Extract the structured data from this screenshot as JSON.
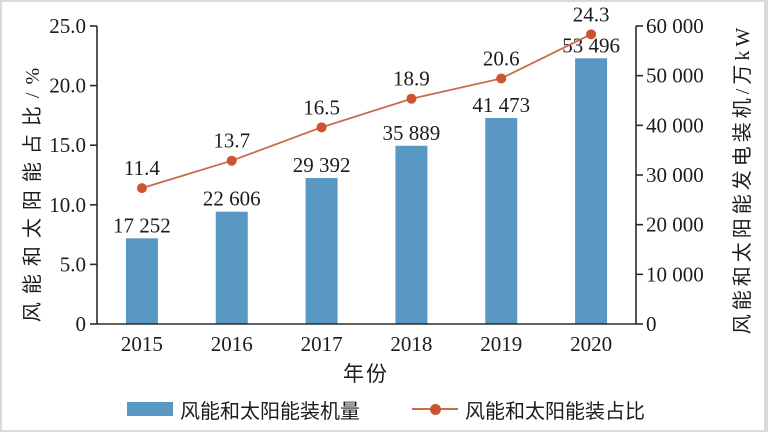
{
  "chart_data": {
    "type": "bar",
    "categories": [
      "2015",
      "2016",
      "2017",
      "2018",
      "2019",
      "2020"
    ],
    "series": [
      {
        "name": "风能和太阳能装机量",
        "type": "bar",
        "axis": "right",
        "values": [
          17252,
          22606,
          29392,
          35889,
          41473,
          53496
        ],
        "labels": [
          "17 252",
          "22 606",
          "29 392",
          "35 889",
          "41 473",
          "53 496"
        ]
      },
      {
        "name": "风能和太阳能装占比",
        "type": "line",
        "axis": "left",
        "values": [
          11.4,
          13.7,
          16.5,
          18.9,
          20.6,
          24.3
        ],
        "labels": [
          "11.4",
          "13.7",
          "16.5",
          "18.9",
          "20.6",
          "24.3"
        ]
      }
    ],
    "title": "",
    "xlabel": "年份",
    "left_axis": {
      "label": "风能和太阳能占比/%",
      "min": 0,
      "max": 25,
      "tick_step": 5,
      "ticks": [
        "0",
        "5.0",
        "10.0",
        "15.0",
        "20.0",
        "25.0"
      ]
    },
    "right_axis": {
      "label": "风能和太阳能发电装机/万kW",
      "min": 0,
      "max": 60000,
      "tick_step": 10000,
      "ticks": [
        "0",
        "10 000",
        "20 000",
        "30 000",
        "40 000",
        "50 000",
        "60 000"
      ]
    },
    "grid": false,
    "legend_position": "bottom",
    "legend": [
      {
        "label": "风能和太阳能装机量",
        "marker": "bar-swatch"
      },
      {
        "label": "风能和太阳能装占比",
        "marker": "line-dot"
      }
    ]
  },
  "colors": {
    "bar": "#5a98c4",
    "line": "#c96a4a",
    "marker": "#cd5430",
    "text": "#1c1c1c",
    "axis": "#2b2b2b"
  }
}
